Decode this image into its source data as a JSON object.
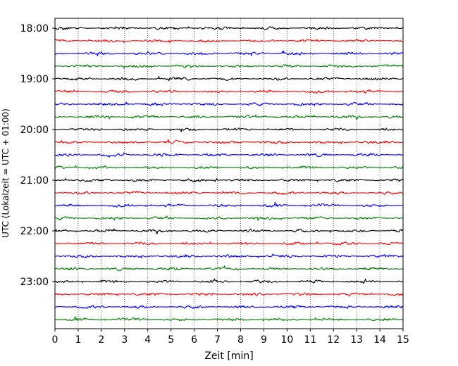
{
  "chart_data": {
    "type": "line",
    "title": "",
    "xlabel": "Zeit  [min]",
    "ylabel": "UTC (Lokalzeit = UTC + 01:00)",
    "xlim": [
      0,
      15
    ],
    "x_ticks": [
      "0",
      "1",
      "2",
      "3",
      "4",
      "5",
      "6",
      "7",
      "8",
      "9",
      "10",
      "11",
      "12",
      "13",
      "14",
      "15"
    ],
    "y_ticks": [
      "18:00",
      "19:00",
      "20:00",
      "21:00",
      "22:00",
      "23:00"
    ],
    "trace_interval_minutes": 15,
    "trace_start_times": [
      "18:00",
      "18:15",
      "18:30",
      "18:45",
      "19:00",
      "19:15",
      "19:30",
      "19:45",
      "20:00",
      "20:15",
      "20:30",
      "20:45",
      "21:00",
      "21:15",
      "21:30",
      "21:45",
      "22:00",
      "22:15",
      "22:30",
      "22:45",
      "23:00",
      "23:15",
      "23:30",
      "23:45"
    ],
    "color_cycle": [
      "#000000",
      "#ff0000",
      "#0000ff",
      "#008000"
    ],
    "grid": "vertical dotted lines at each minute",
    "legend": "none"
  }
}
